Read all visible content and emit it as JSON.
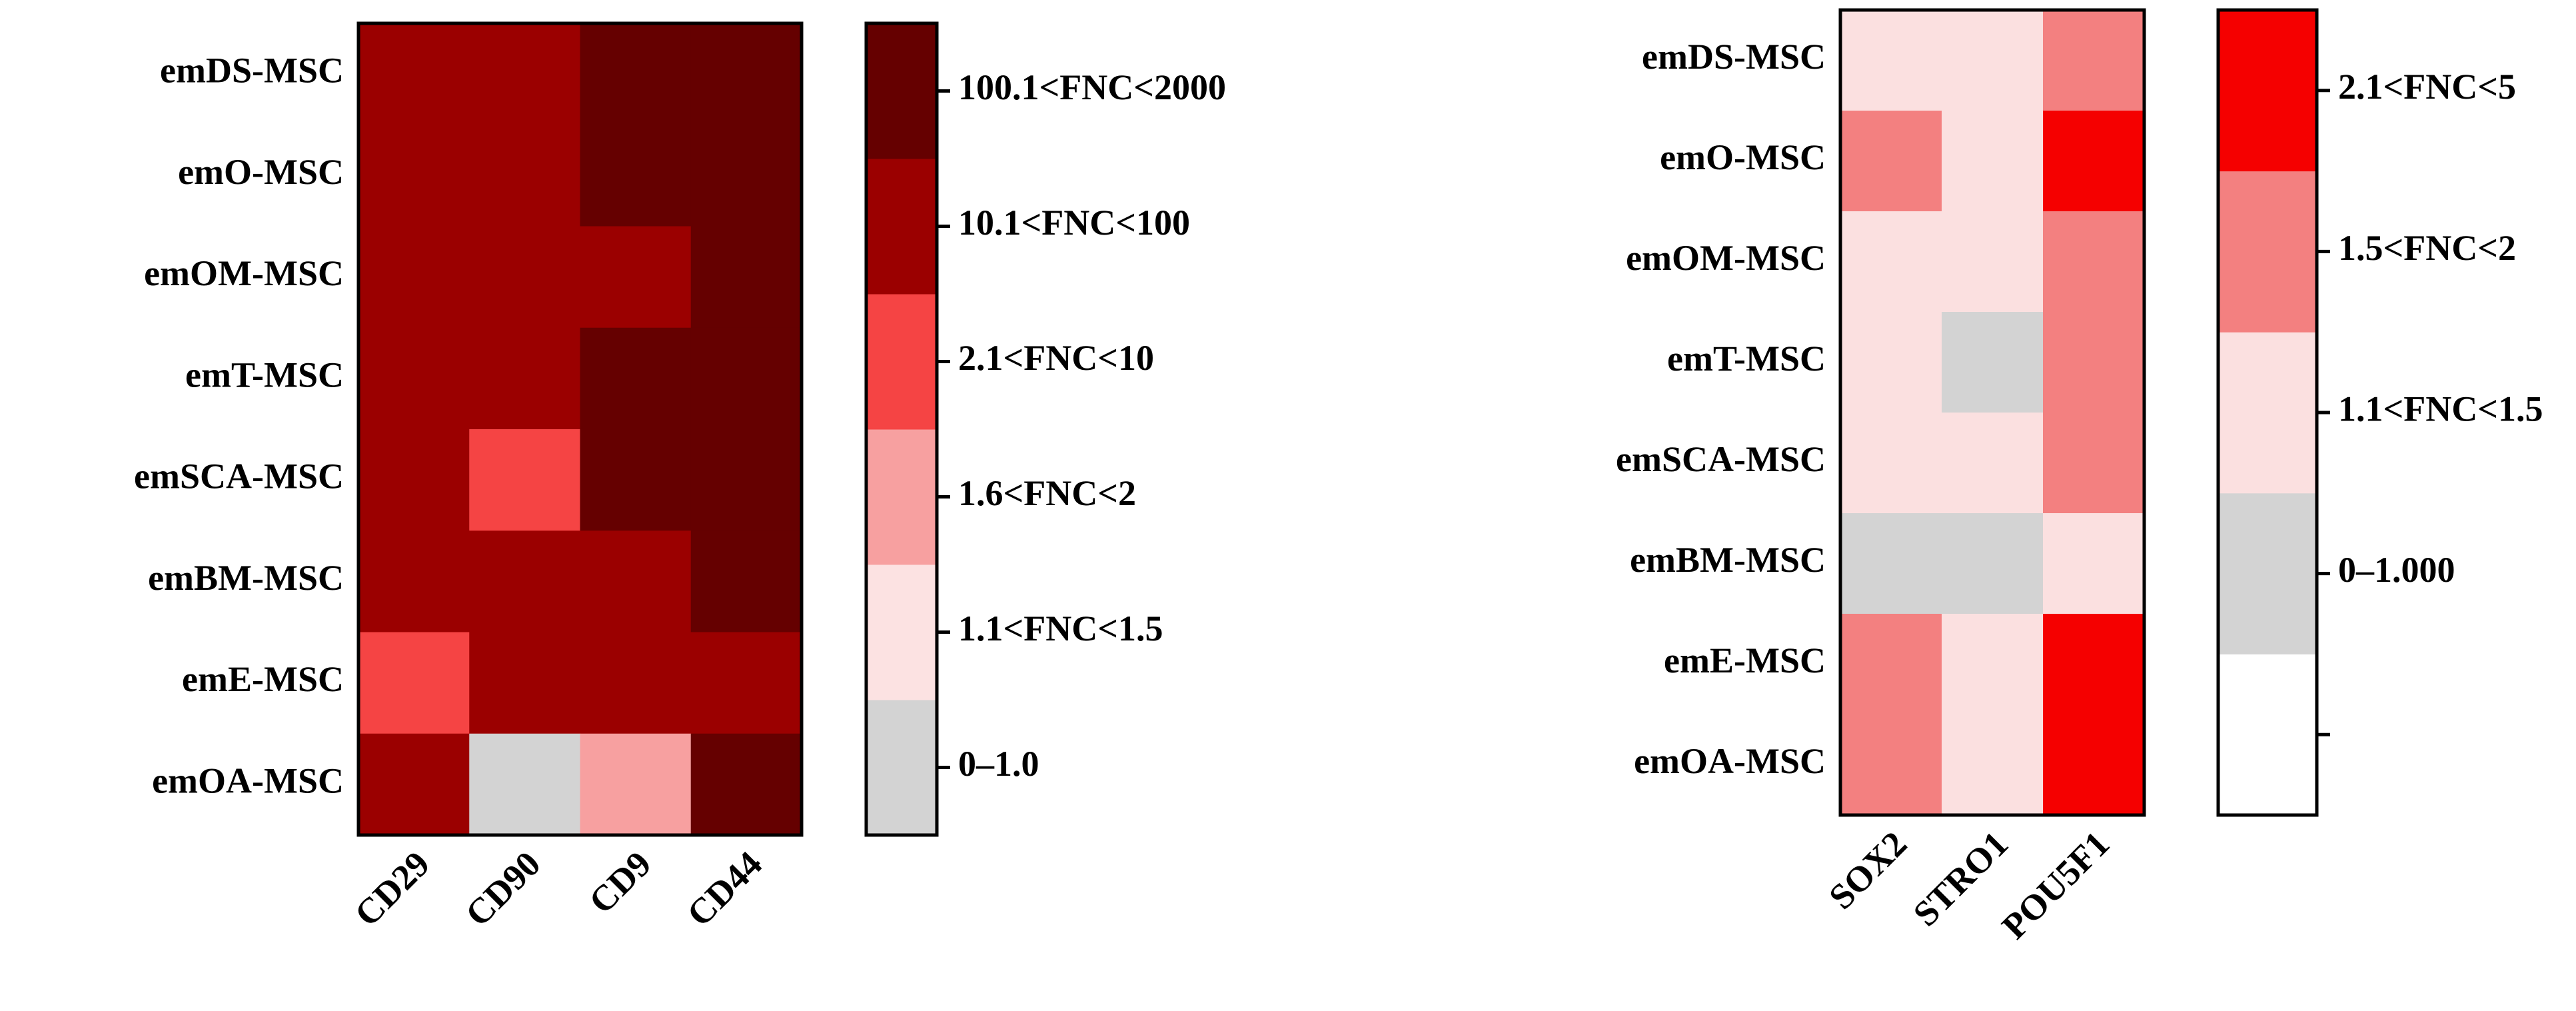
{
  "chart_data": [
    {
      "type": "heatmap",
      "rows": [
        "emDS-MSC",
        "emO-MSC",
        "emOM-MSC",
        "emT-MSC",
        "emSCA-MSC",
        "emBM-MSC",
        "emE-MSC",
        "emOA-MSC"
      ],
      "columns": [
        "CD29",
        "CD90",
        "CD9",
        "CD44"
      ],
      "levels": [
        {
          "label": "0–1.0",
          "color": "#d3d3d3"
        },
        {
          "label": "1.1<FNC<1.5",
          "color": "#fce2e2"
        },
        {
          "label": "1.6<FNC<2",
          "color": "#f7a0a0"
        },
        {
          "label": "2.1<FNC<10",
          "color": "#f54444"
        },
        {
          "label": "10.1<FNC<100",
          "color": "#9b0000"
        },
        {
          "label": "100.1<FNC<2000",
          "color": "#650000"
        }
      ],
      "values": [
        [
          4,
          4,
          5,
          5
        ],
        [
          4,
          4,
          5,
          5
        ],
        [
          4,
          4,
          4,
          5
        ],
        [
          4,
          4,
          5,
          5
        ],
        [
          4,
          3,
          5,
          5
        ],
        [
          4,
          4,
          4,
          5
        ],
        [
          3,
          4,
          4,
          4
        ],
        [
          4,
          0,
          2,
          5
        ]
      ]
    },
    {
      "type": "heatmap",
      "rows": [
        "emDS-MSC",
        "emO-MSC",
        "emOM-MSC",
        "emT-MSC",
        "emSCA-MSC",
        "emBM-MSC",
        "emE-MSC",
        "emOA-MSC"
      ],
      "columns": [
        "SOX2",
        "STRO1",
        "POU5F1"
      ],
      "levels": [
        {
          "label": null,
          "color": "#ffffff"
        },
        {
          "label": "0–1.000",
          "color": "#d3d3d3"
        },
        {
          "label": "1.1<FNC<1.5",
          "color": "#fbe0e0"
        },
        {
          "label": "1.5<FNC<2",
          "color": "#f38080"
        },
        {
          "label": "2.1<FNC<5",
          "color": "#f50000"
        }
      ],
      "values": [
        [
          2,
          2,
          3
        ],
        [
          3,
          2,
          4
        ],
        [
          2,
          2,
          3
        ],
        [
          2,
          1,
          3
        ],
        [
          2,
          2,
          3
        ],
        [
          1,
          1,
          2
        ],
        [
          3,
          2,
          4
        ],
        [
          3,
          2,
          4
        ]
      ]
    }
  ]
}
